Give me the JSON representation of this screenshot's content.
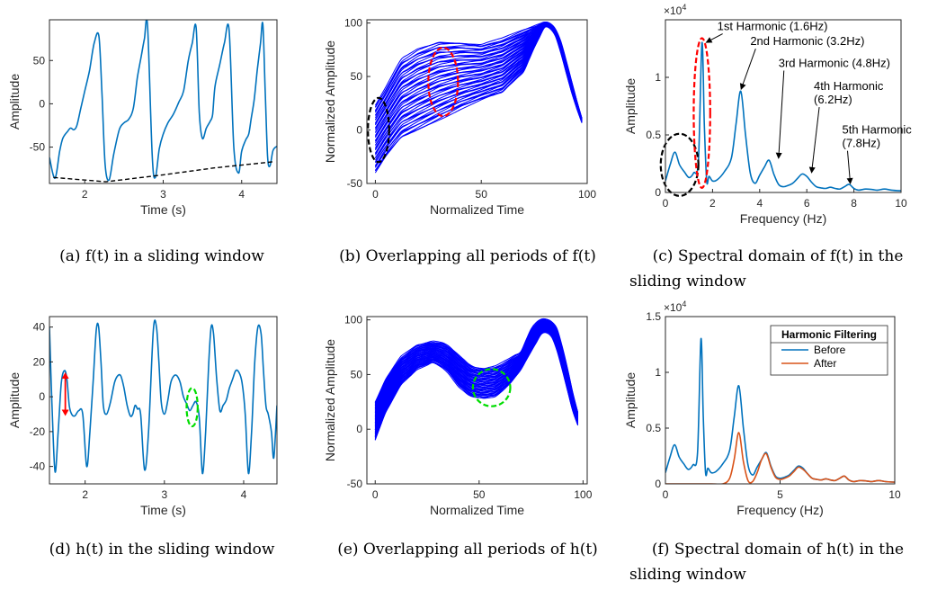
{
  "chart_data": [
    {
      "id": "a",
      "type": "line",
      "caption": "(a) f(t) in a sliding window",
      "xlabel": "Time (s)",
      "ylabel": "Amplitude",
      "xlim": [
        1.55,
        4.45
      ],
      "ylim": [
        -92,
        97
      ],
      "xticks": [
        2,
        3,
        4
      ],
      "yticks": [
        -50,
        0,
        50
      ],
      "series": [
        {
          "color": "#0072BD",
          "x": [
            1.55,
            1.62,
            1.68,
            1.72,
            1.78,
            1.82,
            1.86,
            1.9,
            1.95,
            2.0,
            2.06,
            2.12,
            2.18,
            2.22,
            2.26,
            2.31,
            2.37,
            2.44,
            2.5,
            2.56,
            2.62,
            2.67,
            2.72,
            2.76,
            2.8,
            2.86,
            2.9,
            2.95,
            3.0,
            3.06,
            3.13,
            3.2,
            3.26,
            3.32,
            3.37,
            3.42,
            3.46,
            3.5,
            3.55,
            3.6,
            3.63,
            3.66,
            3.72,
            3.78,
            3.84,
            3.9,
            3.96,
            4.0,
            4.05,
            4.09,
            4.12,
            4.16,
            4.2,
            4.24,
            4.27,
            4.3,
            4.33,
            4.36,
            4.4,
            4.45
          ],
          "y": [
            -62,
            -86,
            -55,
            -40,
            -32,
            -28,
            -30,
            -25,
            -5,
            15,
            38,
            70,
            78,
            10,
            -70,
            -88,
            -58,
            -30,
            -22,
            -18,
            -5,
            30,
            55,
            75,
            90,
            -60,
            -85,
            -52,
            -35,
            -22,
            -12,
            2,
            15,
            50,
            70,
            88,
            -10,
            -40,
            -28,
            -20,
            -12,
            20,
            45,
            70,
            85,
            -50,
            -80,
            -55,
            -42,
            -35,
            -18,
            5,
            40,
            70,
            92,
            15,
            -60,
            -72,
            -54,
            -49
          ]
        }
      ],
      "trend": {
        "style": "dashed",
        "color": "#000000",
        "x": [
          1.6,
          2.27,
          3.0,
          3.65,
          4.4
        ],
        "y": [
          -85,
          -90,
          -82,
          -74,
          -67
        ]
      }
    },
    {
      "id": "b",
      "type": "line",
      "caption": "(b) Overlapping all periods of f(t)",
      "xlabel": "Normalized Time",
      "ylabel": "Normalized Amplitude",
      "xlim": [
        -4,
        100
      ],
      "ylim": [
        -50,
        103
      ],
      "xticks": [
        0,
        50,
        100
      ],
      "yticks": [
        -50,
        0,
        50,
        100
      ],
      "series_color": "#0000FF",
      "series_count": 60,
      "upper": {
        "x": [
          -1,
          5,
          12,
          20,
          30,
          40,
          50,
          60,
          70,
          77,
          80,
          84,
          88,
          92,
          96,
          99
        ],
        "y": [
          20,
          40,
          65,
          75,
          82,
          82,
          80,
          85,
          93,
          98,
          100,
          98,
          80,
          50,
          20,
          0
        ]
      },
      "lower": {
        "x": [
          0,
          5,
          12,
          20,
          30,
          40,
          50,
          60,
          70,
          76,
          80,
          84,
          88,
          92,
          96,
          99
        ],
        "y": [
          -40,
          -25,
          -8,
          0,
          10,
          20,
          28,
          35,
          55,
          82,
          97,
          95,
          70,
          40,
          15,
          0
        ]
      },
      "markers": [
        {
          "shape": "ellipse",
          "color": "#000000",
          "cx": 1.5,
          "cy": 0,
          "rx": 5,
          "ry": 30
        },
        {
          "shape": "ellipse",
          "color": "#FF0000",
          "cx": 32,
          "cy": 45,
          "rx": 7,
          "ry": 32
        }
      ]
    },
    {
      "id": "c",
      "type": "line",
      "caption": "(c) Spectral domain of f(t) in the sliding window",
      "xlabel": "Frequency (Hz)",
      "ylabel": "Amplitude",
      "xlim": [
        0,
        10
      ],
      "ylim": [
        0,
        15000
      ],
      "xticks": [
        0,
        2,
        4,
        6,
        8,
        10
      ],
      "yticks": [
        0,
        5000,
        10000
      ],
      "ytick_labels": [
        "0",
        "0.5",
        "1"
      ],
      "exponent_label": "×10^4",
      "series": [
        {
          "color": "#0072BD",
          "x": [
            0,
            0.2,
            0.4,
            0.6,
            0.8,
            1.0,
            1.2,
            1.4,
            1.55,
            1.65,
            1.75,
            1.85,
            2.0,
            2.2,
            2.5,
            2.8,
            3.0,
            3.2,
            3.4,
            3.6,
            3.8,
            4.0,
            4.2,
            4.4,
            4.6,
            4.8,
            5.0,
            5.2,
            5.4,
            5.6,
            5.8,
            6.0,
            6.2,
            6.4,
            6.6,
            6.8,
            7.0,
            7.2,
            7.4,
            7.6,
            7.8,
            8.0,
            8.2,
            8.5,
            8.8,
            9.0,
            9.3,
            9.6,
            10.0
          ],
          "y": [
            1000,
            2400,
            3500,
            2400,
            1800,
            1300,
            1700,
            2800,
            13000,
            6000,
            1000,
            1400,
            1000,
            1100,
            1800,
            3000,
            6000,
            8800,
            5000,
            1700,
            800,
            1500,
            2200,
            2800,
            1600,
            700,
            500,
            600,
            800,
            1200,
            1600,
            1400,
            900,
            500,
            400,
            350,
            450,
            350,
            300,
            500,
            700,
            350,
            200,
            300,
            250,
            200,
            300,
            200,
            150
          ]
        }
      ],
      "markers": [
        {
          "shape": "ellipse",
          "color": "#000000",
          "cx": 0.6,
          "cy": 2400,
          "rx": 0.8,
          "ry": 2700
        },
        {
          "shape": "ellipse",
          "color": "#FF0000",
          "cx": 1.55,
          "cy": 6900,
          "rx": 0.35,
          "ry": 6500
        }
      ],
      "annotations": [
        {
          "lines": [
            "1st Harmonic (1.6Hz)"
          ],
          "tx": 2.2,
          "ty": 14100,
          "ax": 1.7,
          "ay": 13000
        },
        {
          "lines": [
            "2nd Harmonic (3.2Hz)"
          ],
          "tx": 3.6,
          "ty": 12800,
          "ax": 3.2,
          "ay": 8900
        },
        {
          "lines": [
            "3rd Harmonic (4.8Hz)"
          ],
          "tx": 4.8,
          "ty": 10900,
          "ax": 4.8,
          "ay": 2900
        },
        {
          "lines": [
            "4th Harmonic",
            "(6.2Hz)"
          ],
          "tx": 6.3,
          "ty": 8900,
          "ax": 6.2,
          "ay": 1650
        },
        {
          "lines": [
            "5th Harmonic",
            "(7.8Hz)"
          ],
          "tx": 7.5,
          "ty": 5100,
          "ax": 7.85,
          "ay": 700
        }
      ]
    },
    {
      "id": "d",
      "type": "line",
      "caption": "(d) h(t) in the sliding window",
      "xlabel": "Time (s)",
      "ylabel": "Amplitude",
      "xlim": [
        1.55,
        4.42
      ],
      "ylim": [
        -50,
        46
      ],
      "xticks": [
        2,
        3,
        4
      ],
      "yticks": [
        -40,
        -20,
        0,
        20,
        40
      ],
      "series": [
        {
          "color": "#0072BD",
          "x": [
            1.55,
            1.58,
            1.62,
            1.66,
            1.7,
            1.74,
            1.77,
            1.8,
            1.83,
            1.87,
            1.92,
            1.97,
            2.02,
            2.06,
            2.1,
            2.14,
            2.17,
            2.2,
            2.23,
            2.27,
            2.32,
            2.37,
            2.41,
            2.45,
            2.49,
            2.53,
            2.57,
            2.6,
            2.63,
            2.66,
            2.7,
            2.75,
            2.8,
            2.86,
            2.9,
            2.93,
            2.96,
            3.0,
            3.04,
            3.08,
            3.12,
            3.16,
            3.2,
            3.24,
            3.28,
            3.32,
            3.36,
            3.4,
            3.44,
            3.48,
            3.52,
            3.56,
            3.59,
            3.62,
            3.66,
            3.7,
            3.74,
            3.78,
            3.82,
            3.86,
            3.9,
            3.94,
            3.98,
            4.02,
            4.06,
            4.1,
            4.14,
            4.18,
            4.22,
            4.25,
            4.28,
            4.31,
            4.35,
            4.38,
            4.42
          ],
          "y": [
            40,
            -2,
            -43,
            -20,
            8,
            15,
            10,
            -5,
            -10,
            -11,
            -8,
            -10,
            -40,
            -20,
            8,
            38,
            40,
            20,
            -5,
            -10,
            -3,
            8,
            12,
            12,
            5,
            -5,
            -11,
            -10,
            -5,
            -7,
            -10,
            -42,
            -20,
            38,
            40,
            20,
            -3,
            -10,
            -3,
            8,
            12,
            12,
            8,
            0,
            -4,
            -8,
            -5,
            -3,
            -12,
            -44,
            -20,
            20,
            40,
            36,
            10,
            -8,
            -5,
            -2,
            5,
            10,
            15,
            14,
            8,
            -10,
            -44,
            -20,
            20,
            40,
            36,
            15,
            -5,
            -10,
            -20,
            -35,
            -5
          ]
        }
      ],
      "markers": [
        {
          "shape": "double-arrow",
          "color": "#FF0000",
          "x": 1.75,
          "y1": 14,
          "y2": -11
        },
        {
          "shape": "ellipse",
          "color": "#00DD00",
          "cx": 3.35,
          "cy": -6,
          "rx": 0.07,
          "ry": 11
        }
      ]
    },
    {
      "id": "e",
      "type": "line",
      "caption": "(e) Overlapping all periods of h(t)",
      "xlabel": "Normalized Time",
      "ylabel": "Normalized Amplitude",
      "xlim": [
        -4,
        102
      ],
      "ylim": [
        -50,
        103
      ],
      "xticks": [
        0,
        50,
        100
      ],
      "yticks": [
        -50,
        0,
        50,
        100
      ],
      "series_color": "#0000FF",
      "series_count": 60,
      "upper": {
        "x": [
          0,
          5,
          12,
          20,
          28,
          34,
          40,
          46,
          52,
          58,
          64,
          70,
          76,
          80,
          84,
          88,
          92,
          96,
          99
        ],
        "y": [
          25,
          45,
          65,
          76,
          80,
          78,
          68,
          58,
          55,
          57,
          63,
          70,
          95,
          100,
          100,
          90,
          60,
          25,
          5
        ]
      },
      "lower": {
        "x": [
          0,
          5,
          12,
          20,
          28,
          34,
          40,
          46,
          52,
          58,
          64,
          70,
          76,
          80,
          84,
          88,
          92,
          96,
          99
        ],
        "y": [
          -10,
          15,
          40,
          55,
          62,
          55,
          40,
          30,
          28,
          30,
          40,
          55,
          75,
          88,
          90,
          70,
          40,
          10,
          -2
        ]
      },
      "markers": [
        {
          "shape": "ellipse",
          "color": "#00DD00",
          "cx": 56,
          "cy": 38,
          "rx": 9,
          "ry": 17
        }
      ]
    },
    {
      "id": "f",
      "type": "line",
      "caption": "(f) Spectral domain of h(t) in the sliding window",
      "xlabel": "Frequency (Hz)",
      "ylabel": "Amplitude",
      "xlim": [
        0,
        10
      ],
      "ylim": [
        0,
        15000
      ],
      "xticks": [
        0,
        5,
        10
      ],
      "yticks": [
        0,
        5000,
        10000,
        15000
      ],
      "ytick_labels": [
        "0",
        "0.5",
        "1",
        "1.5"
      ],
      "exponent_label": "×10^4",
      "legend": {
        "title": "Harmonic Filtering",
        "position": "top-right"
      },
      "series": [
        {
          "name": "Before",
          "color": "#0072BD",
          "x": [
            0,
            0.2,
            0.4,
            0.6,
            0.8,
            1.0,
            1.2,
            1.4,
            1.55,
            1.65,
            1.75,
            1.85,
            2.0,
            2.2,
            2.5,
            2.8,
            3.0,
            3.2,
            3.4,
            3.6,
            3.8,
            4.0,
            4.2,
            4.4,
            4.6,
            4.8,
            5.0,
            5.2,
            5.4,
            5.6,
            5.8,
            6.0,
            6.2,
            6.4,
            6.6,
            6.8,
            7.0,
            7.2,
            7.4,
            7.6,
            7.8,
            8.0,
            8.2,
            8.5,
            8.8,
            9.0,
            9.3,
            9.6,
            10.0
          ],
          "y": [
            1000,
            2400,
            3500,
            2400,
            1800,
            1300,
            1700,
            2800,
            13000,
            6000,
            1000,
            1400,
            1000,
            1100,
            1800,
            3000,
            6000,
            8800,
            5000,
            1700,
            800,
            1500,
            2200,
            2800,
            1600,
            700,
            500,
            600,
            800,
            1200,
            1600,
            1400,
            900,
            500,
            400,
            350,
            450,
            350,
            300,
            500,
            700,
            350,
            200,
            300,
            250,
            200,
            300,
            200,
            150
          ]
        },
        {
          "name": "After",
          "color": "#D95319",
          "x": [
            0,
            0.5,
            1.0,
            1.5,
            2.0,
            2.5,
            2.8,
            3.0,
            3.2,
            3.4,
            3.6,
            3.8,
            4.0,
            4.2,
            4.4,
            4.6,
            4.8,
            5.0,
            5.2,
            5.4,
            5.6,
            5.8,
            6.0,
            6.2,
            6.4,
            6.6,
            6.8,
            7.0,
            7.2,
            7.4,
            7.6,
            7.8,
            8.0,
            8.2,
            8.5,
            8.8,
            9.0,
            9.3,
            9.6,
            10.0
          ],
          "y": [
            0,
            0,
            0,
            0,
            0,
            0,
            500,
            2200,
            4600,
            2000,
            300,
            200,
            1000,
            2200,
            2700,
            1500,
            600,
            400,
            500,
            700,
            1100,
            1500,
            1300,
            900,
            500,
            400,
            350,
            450,
            350,
            300,
            500,
            700,
            350,
            200,
            300,
            250,
            200,
            300,
            200,
            150
          ]
        }
      ]
    }
  ]
}
